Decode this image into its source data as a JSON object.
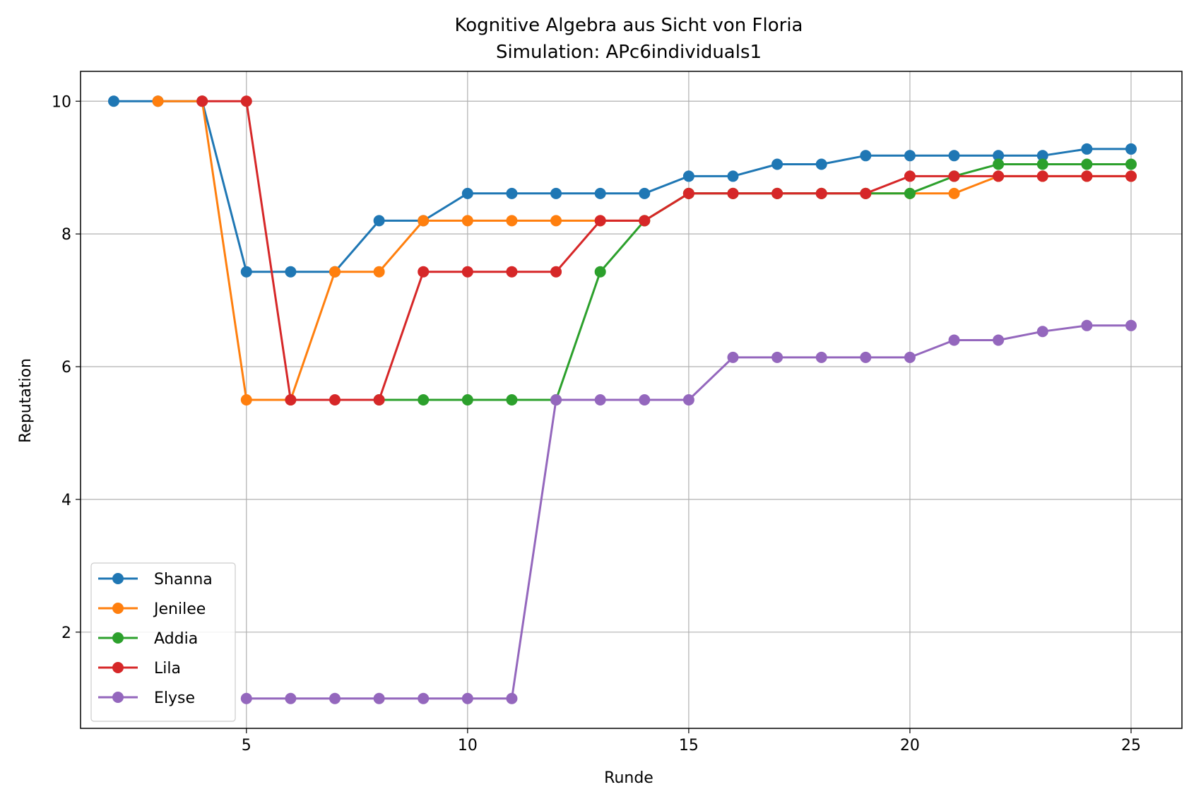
{
  "chart_data": {
    "type": "line",
    "title": "Kognitive Algebra aus Sicht von Floria",
    "subtitle": "Simulation: APc6individuals1",
    "xlabel": "Runde",
    "ylabel": "Reputation",
    "xlim": [
      1.25,
      26.15
    ],
    "ylim": [
      0.55,
      10.45
    ],
    "xticks": [
      "5",
      "10",
      "15",
      "20",
      "25"
    ],
    "yticks": [
      "2",
      "4",
      "6",
      "8",
      "10"
    ],
    "grid": true,
    "legend_position": "lower-left",
    "series": [
      {
        "name": "Shanna",
        "color": "#1f77b4",
        "points": [
          [
            2,
            10
          ],
          [
            3,
            10
          ],
          [
            4,
            10
          ],
          [
            5,
            7.43
          ],
          [
            6,
            7.43
          ],
          [
            7,
            7.43
          ],
          [
            8,
            8.2
          ],
          [
            9,
            8.2
          ],
          [
            10,
            8.61
          ],
          [
            11,
            8.61
          ],
          [
            12,
            8.61
          ],
          [
            13,
            8.61
          ],
          [
            14,
            8.61
          ],
          [
            15,
            8.87
          ],
          [
            16,
            8.87
          ],
          [
            17,
            9.05
          ],
          [
            18,
            9.05
          ],
          [
            19,
            9.18
          ],
          [
            20,
            9.18
          ],
          [
            21,
            9.18
          ],
          [
            22,
            9.18
          ],
          [
            23,
            9.18
          ],
          [
            24,
            9.28
          ],
          [
            25,
            9.28
          ]
        ]
      },
      {
        "name": "Jenilee",
        "color": "#ff7f0e",
        "points": [
          [
            3,
            10
          ],
          [
            4,
            10
          ],
          [
            5,
            5.5
          ],
          [
            6,
            5.5
          ],
          [
            7,
            7.43
          ],
          [
            8,
            7.43
          ],
          [
            9,
            8.2
          ],
          [
            10,
            8.2
          ],
          [
            11,
            8.2
          ],
          [
            12,
            8.2
          ],
          [
            13,
            8.2
          ],
          [
            14,
            8.2
          ],
          [
            15,
            8.61
          ],
          [
            16,
            8.61
          ],
          [
            17,
            8.61
          ],
          [
            18,
            8.61
          ],
          [
            19,
            8.61
          ],
          [
            20,
            8.61
          ],
          [
            21,
            8.61
          ],
          [
            22,
            8.87
          ],
          [
            23,
            8.87
          ],
          [
            24,
            8.87
          ],
          [
            25,
            8.87
          ]
        ]
      },
      {
        "name": "Addia",
        "color": "#2ca02c",
        "points": [
          [
            8,
            5.5
          ],
          [
            9,
            5.5
          ],
          [
            10,
            5.5
          ],
          [
            11,
            5.5
          ],
          [
            12,
            5.5
          ],
          [
            13,
            7.43
          ],
          [
            14,
            8.2
          ],
          [
            15,
            8.61
          ],
          [
            16,
            8.61
          ],
          [
            17,
            8.61
          ],
          [
            18,
            8.61
          ],
          [
            19,
            8.61
          ],
          [
            20,
            8.61
          ],
          [
            21,
            8.87
          ],
          [
            22,
            9.05
          ],
          [
            23,
            9.05
          ],
          [
            24,
            9.05
          ],
          [
            25,
            9.05
          ]
        ]
      },
      {
        "name": "Lila",
        "color": "#d62728",
        "points": [
          [
            4,
            10
          ],
          [
            5,
            10
          ],
          [
            6,
            5.5
          ],
          [
            7,
            5.5
          ],
          [
            8,
            5.5
          ],
          [
            9,
            7.43
          ],
          [
            10,
            7.43
          ],
          [
            11,
            7.43
          ],
          [
            12,
            7.43
          ],
          [
            13,
            8.2
          ],
          [
            14,
            8.2
          ],
          [
            15,
            8.61
          ],
          [
            16,
            8.61
          ],
          [
            17,
            8.61
          ],
          [
            18,
            8.61
          ],
          [
            19,
            8.61
          ],
          [
            20,
            8.87
          ],
          [
            21,
            8.87
          ],
          [
            22,
            8.87
          ],
          [
            23,
            8.87
          ],
          [
            24,
            8.87
          ],
          [
            25,
            8.87
          ]
        ]
      },
      {
        "name": "Elyse",
        "color": "#9467bd",
        "points": [
          [
            5,
            1
          ],
          [
            6,
            1
          ],
          [
            7,
            1
          ],
          [
            8,
            1
          ],
          [
            9,
            1
          ],
          [
            10,
            1
          ],
          [
            11,
            1
          ],
          [
            12,
            5.5
          ],
          [
            13,
            5.5
          ],
          [
            14,
            5.5
          ],
          [
            15,
            5.5
          ],
          [
            16,
            6.14
          ],
          [
            17,
            6.14
          ],
          [
            18,
            6.14
          ],
          [
            19,
            6.14
          ],
          [
            20,
            6.14
          ],
          [
            21,
            6.4
          ],
          [
            22,
            6.4
          ],
          [
            23,
            6.53
          ],
          [
            24,
            6.62
          ],
          [
            25,
            6.62
          ]
        ]
      }
    ]
  }
}
